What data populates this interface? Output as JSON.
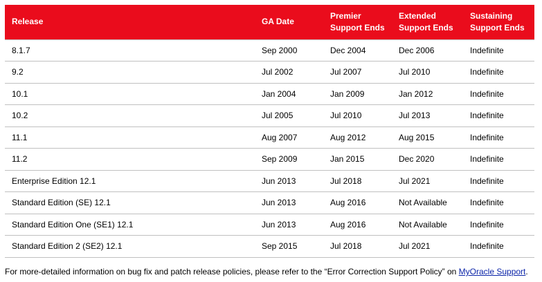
{
  "table": {
    "headers": {
      "release": "Release",
      "ga_date": "GA Date",
      "premier": [
        "Premier",
        "Support Ends"
      ],
      "extended": [
        "Extended",
        "Support Ends"
      ],
      "sustaining": [
        "Sustaining",
        "Support Ends"
      ]
    },
    "rows": [
      {
        "release": "8.1.7",
        "ga": "Sep 2000",
        "premier": "Dec 2004",
        "extended": "Dec 2006",
        "sustaining": "Indefinite"
      },
      {
        "release": "9.2",
        "ga": "Jul 2002",
        "premier": "Jul 2007",
        "extended": "Jul 2010",
        "sustaining": "Indefinite"
      },
      {
        "release": "10.1",
        "ga": "Jan 2004",
        "premier": "Jan 2009",
        "extended": "Jan 2012",
        "sustaining": "Indefinite"
      },
      {
        "release": "10.2",
        "ga": "Jul 2005",
        "premier": "Jul 2010",
        "extended": "Jul 2013",
        "sustaining": "Indefinite"
      },
      {
        "release": "11.1",
        "ga": "Aug 2007",
        "premier": "Aug 2012",
        "extended": "Aug 2015",
        "sustaining": "Indefinite"
      },
      {
        "release": "11.2",
        "ga": "Sep 2009",
        "premier": "Jan 2015",
        "extended": "Dec 2020",
        "sustaining": "Indefinite"
      },
      {
        "release": "Enterprise Edition 12.1",
        "ga": "Jun 2013",
        "premier": "Jul 2018",
        "extended": "Jul 2021",
        "sustaining": "Indefinite"
      },
      {
        "release": "Standard Edition (SE) 12.1",
        "ga": "Jun 2013",
        "premier": "Aug 2016",
        "extended": "Not Available",
        "sustaining": "Indefinite"
      },
      {
        "release": "Standard Edition One (SE1) 12.1",
        "ga": "Jun 2013",
        "premier": "Aug 2016",
        "extended": "Not Available",
        "sustaining": "Indefinite"
      },
      {
        "release": "Standard Edition 2 (SE2) 12.1",
        "ga": "Sep 2015",
        "premier": "Jul 2018",
        "extended": "Jul 2021",
        "sustaining": "Indefinite"
      }
    ]
  },
  "footnote": {
    "text": "For more-detailed information on bug fix and patch release policies, please refer to the “Error Correction Support Policy” on ",
    "link_text": "MyOracle Support",
    "end": "."
  },
  "colors": {
    "header_bg": "#ea0c1c",
    "header_text": "#ffffff",
    "row_border": "#c0c0c0",
    "link": "#0b24a8"
  }
}
